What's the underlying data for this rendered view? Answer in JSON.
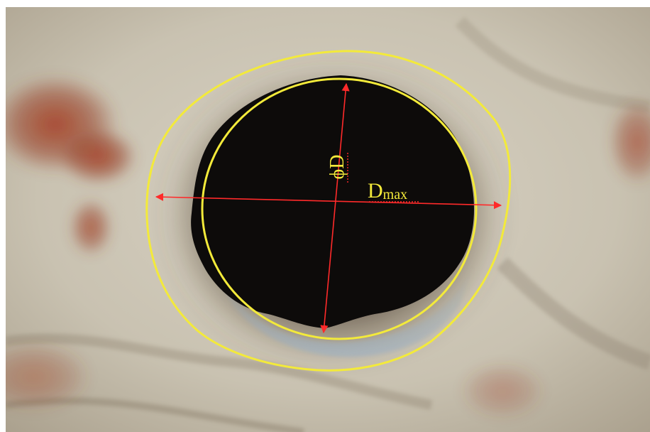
{
  "annotations": {
    "diameter_label": "ϕD",
    "max_diameter_label": "D",
    "max_diameter_subscript": "max"
  },
  "colors": {
    "outline": "#f3ea3a",
    "arrow": "#ff2a2a",
    "hole": "#0d0b0a",
    "surface": "#cfc8b8",
    "rust": "#a0402a"
  }
}
